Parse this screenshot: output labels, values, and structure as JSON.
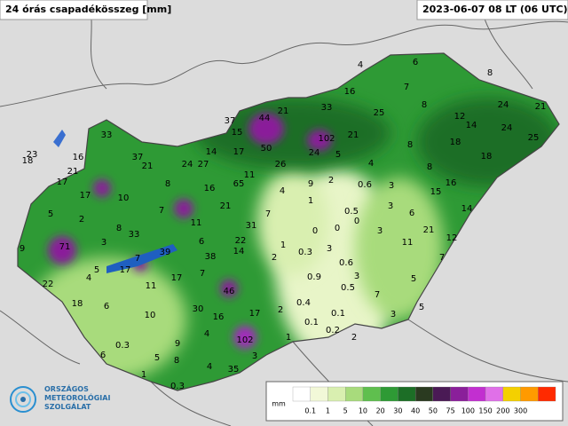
{
  "header": {
    "title": "24 órás csapadékösszeg [mm]",
    "date": "2023-06-07 08 LT (06 UTC)"
  },
  "logo": {
    "lines": [
      "ORSZÁGOS",
      "METEOROLÓGIAI",
      "SZOLGÁLAT"
    ]
  },
  "stations": [
    "4",
    "6",
    "8",
    "7",
    "16",
    "24",
    "21",
    "25",
    "8",
    "12",
    "14",
    "24",
    "25",
    "33",
    "21",
    "37",
    "44",
    "15",
    "102",
    "21",
    "33",
    "18",
    "8",
    "18",
    "23",
    "18",
    "16",
    "37",
    "50",
    "17",
    "14",
    "24",
    "5",
    "26",
    "21",
    "24",
    "27",
    "21",
    "4",
    "8",
    "11",
    "17",
    "8",
    "65",
    "16",
    "9",
    "2",
    "0.6",
    "3",
    "16",
    "15",
    "17",
    "10",
    "4",
    "1",
    "21",
    "7",
    "14",
    "3",
    "0.5",
    "0",
    "6",
    "5",
    "2",
    "7",
    "8",
    "33",
    "11",
    "31",
    "0",
    "0",
    "3",
    "21",
    "12",
    "3",
    "6",
    "22",
    "1",
    "11",
    "9",
    "71",
    "39",
    "14",
    "0.3",
    "3",
    "7",
    "7",
    "38",
    "2",
    "0.6",
    "5",
    "17",
    "4",
    "7",
    "17",
    "0.9",
    "3",
    "5",
    "22",
    "11",
    "0.5",
    "46",
    "7",
    "18",
    "6",
    "30",
    "0.4",
    "5",
    "2",
    "17",
    "16",
    "10",
    "0.1",
    "3",
    "0.1",
    "4",
    "0.2",
    "2",
    "102",
    "1",
    "9",
    "0.3",
    "5",
    "8",
    "6",
    "3",
    "4",
    "35",
    "1",
    "0.3"
  ],
  "legend": {
    "unit": "mm",
    "labels": [
      "0.1",
      "1",
      "5",
      "10",
      "20",
      "30",
      "40",
      "50",
      "75",
      "100",
      "150",
      "200",
      "300"
    ],
    "colors": [
      "#ffffff",
      "#f2f8d8",
      "#d9efb0",
      "#a8db7c",
      "#5fbf4e",
      "#2e9a35",
      "#1c6e26",
      "#2a3a20",
      "#4a1a55",
      "#8a1f9a",
      "#c22fd0",
      "#e070e8",
      "#f4d000",
      "#ff9a00",
      "#ff2a00"
    ]
  }
}
